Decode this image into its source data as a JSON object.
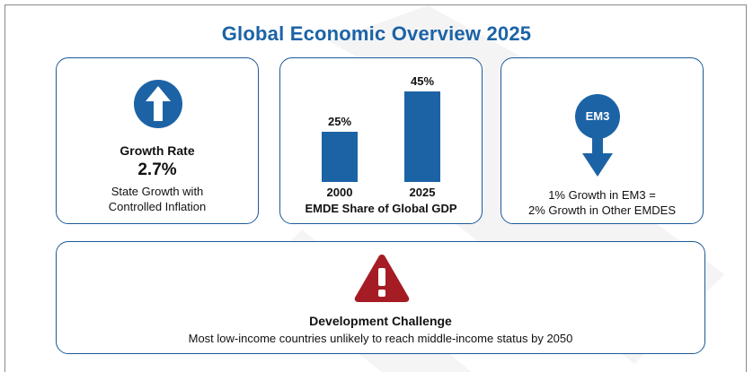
{
  "title": "Global Economic Overview 2025",
  "colors": {
    "accent": "#1c63a6",
    "warning": "#a51c24",
    "watermark": "#f3f3f3"
  },
  "growth_card": {
    "icon": "up-arrow-icon",
    "heading": "Growth Rate",
    "value": "2.7%",
    "desc_line1": "State Growth with",
    "desc_line2": "Controlled Inflation"
  },
  "emde_card": {
    "caption": "EMDE Share of Global GDP",
    "chart_data": {
      "type": "bar",
      "categories": [
        "2000",
        "2025"
      ],
      "values": [
        25,
        45
      ],
      "value_labels": [
        "25%",
        "45%"
      ],
      "xlabel": "EMDE Share of Global GDP",
      "ylabel": "",
      "ylim": [
        0,
        45
      ],
      "grid": false
    }
  },
  "em3_card": {
    "icon": "down-arrow-icon",
    "badge": "EM3",
    "desc_line1": "1% Growth in EM3 =",
    "desc_line2": "2% Growth in Other EMDES"
  },
  "development_card": {
    "icon": "warning-triangle-icon",
    "heading": "Development Challenge",
    "text": "Most low-income countries unlikely to reach middle-income status by 2050"
  }
}
